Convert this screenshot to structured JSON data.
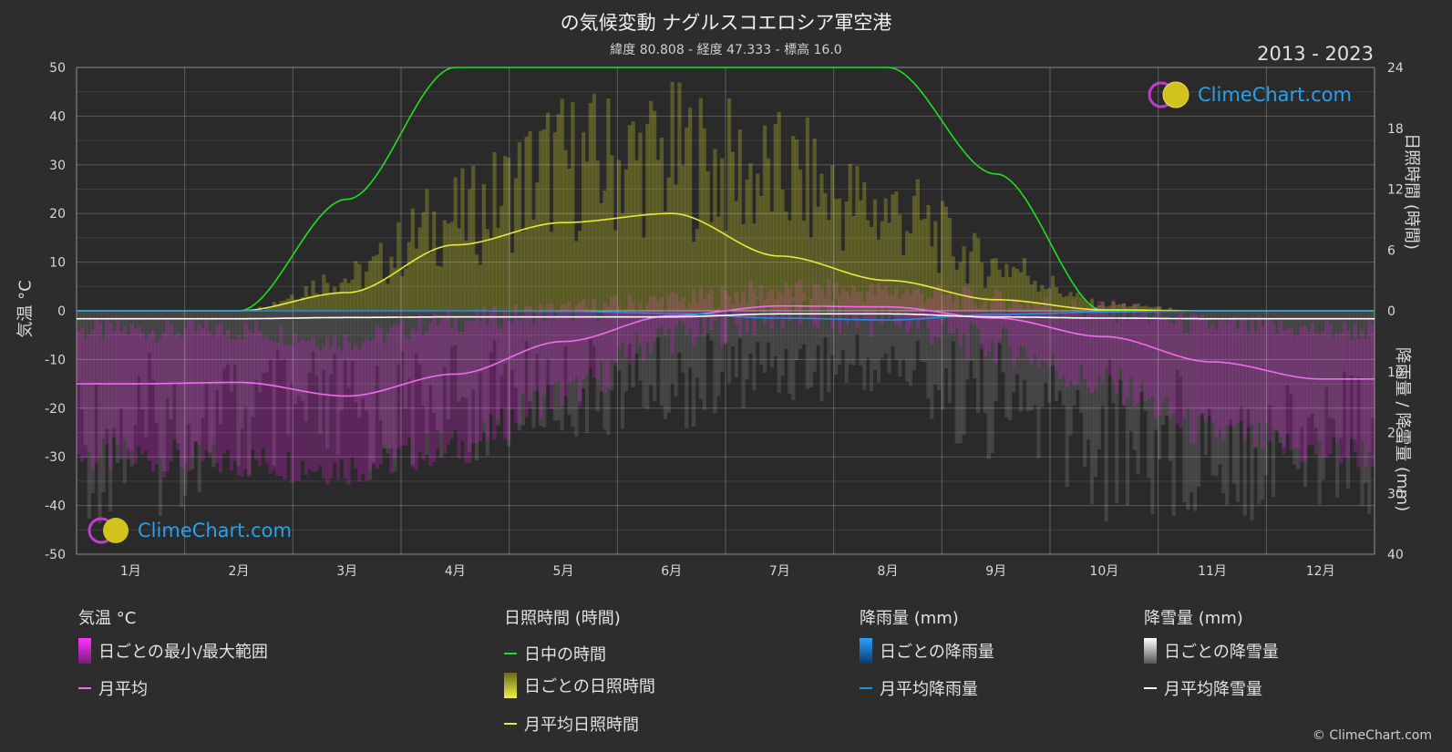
{
  "title": "の気候変動 ナグルスコエロシア軍空港",
  "subtitle": "緯度 80.808 - 経度 47.333 - 標高 16.0",
  "years": "2013 - 2023",
  "logo_text": "ClimeChart.com",
  "copyright": "© ClimeChart.com",
  "axes": {
    "left_title": "気温 °C",
    "right_top_title": "日照時間 (時間)",
    "right_bottom_title": "降雨量 / 降雪量 (mm)"
  },
  "legend": {
    "temperature": {
      "heading": "気温 °C",
      "items": [
        "日ごとの最小/最大範囲",
        "月平均"
      ]
    },
    "sunshine": {
      "heading": "日照時間 (時間)",
      "items": [
        "日中の時間",
        "日ごとの日照時間",
        "月平均日照時間"
      ]
    },
    "rain": {
      "heading": "降雨量 (mm)",
      "items": [
        "日ごとの降雨量",
        "月平均降雨量"
      ]
    },
    "snow": {
      "heading": "降雪量 (mm)",
      "items": [
        "日ごとの降雪量",
        "月平均降雪量"
      ]
    }
  },
  "colors": {
    "background": "#2d2d2d",
    "daylight": "#22dd22",
    "sunshine_avg": "#e8e83a",
    "sunshine_bars": "#b4b428",
    "temp_avg": "#ef6cef",
    "temp_range": "#d01fd0",
    "rain": "#1f8fe0",
    "snow": "#ffffff",
    "logo": "#2b9fe8"
  },
  "chart_data": {
    "type": "line",
    "categories": [
      "1月",
      "2月",
      "3月",
      "4月",
      "5月",
      "6月",
      "7月",
      "8月",
      "9月",
      "10月",
      "11月",
      "12月"
    ],
    "left_axis": {
      "label": "気温 °C",
      "ticks": [
        50,
        40,
        30,
        20,
        10,
        0,
        -10,
        -20,
        -30,
        -40,
        -50
      ],
      "ylim": [
        -50,
        50
      ]
    },
    "right_axis_top": {
      "label": "日照時間 (時間)",
      "ticks": [
        24,
        18,
        12,
        6,
        0
      ],
      "ylim": [
        0,
        24
      ]
    },
    "right_axis_bottom": {
      "label": "降雨量 / 降雪量 (mm)",
      "ticks": [
        0,
        10,
        20,
        30,
        40
      ],
      "ylim": [
        0,
        40
      ]
    },
    "grid": true,
    "series": [
      {
        "name": "日中の時間",
        "unit": "hours",
        "values": [
          0,
          0,
          11,
          24,
          24,
          24,
          24,
          24,
          13.5,
          0,
          0,
          0
        ]
      },
      {
        "name": "月平均日照時間",
        "unit": "hours",
        "values": [
          0,
          0,
          1.8,
          6.5,
          8.7,
          9.6,
          5.4,
          3.0,
          1.1,
          0.1,
          0,
          0
        ]
      },
      {
        "name": "月平均",
        "unit": "°C",
        "values": [
          -15,
          -14.7,
          -17.5,
          -13,
          -6.3,
          -1,
          1,
          0.8,
          -1.5,
          -5.3,
          -10.5,
          -14
        ]
      },
      {
        "name": "月平均降雨量",
        "unit": "mm",
        "values": [
          0,
          0,
          0,
          0,
          0.1,
          0.4,
          1.2,
          1.5,
          0.6,
          0.2,
          0,
          0
        ]
      },
      {
        "name": "月平均降雪量",
        "unit": "mm",
        "values": [
          1.3,
          1.3,
          1.1,
          1.0,
          1.0,
          1.0,
          0.5,
          0.5,
          1.0,
          1.2,
          1.3,
          1.3
        ]
      }
    ],
    "daily_temp_range": {
      "name": "日ごとの最小/最大範囲",
      "min": [
        -30,
        -31,
        -32,
        -28,
        -17,
        -5,
        -1,
        -2,
        -7,
        -15,
        -25,
        -29
      ],
      "max": [
        -4,
        -4,
        -6,
        -2,
        0,
        2,
        4,
        4,
        2,
        0,
        -3,
        -4
      ]
    },
    "daily_sunshine_peak": {
      "name": "日ごとの日照時間",
      "values": [
        0,
        0,
        5,
        14,
        22,
        23,
        20,
        15,
        7,
        1,
        0,
        0
      ]
    },
    "daily_snow_peak": {
      "name": "日ごとの降雪量",
      "values": [
        35,
        30,
        30,
        25,
        22,
        20,
        15,
        15,
        25,
        35,
        35,
        35
      ]
    }
  }
}
